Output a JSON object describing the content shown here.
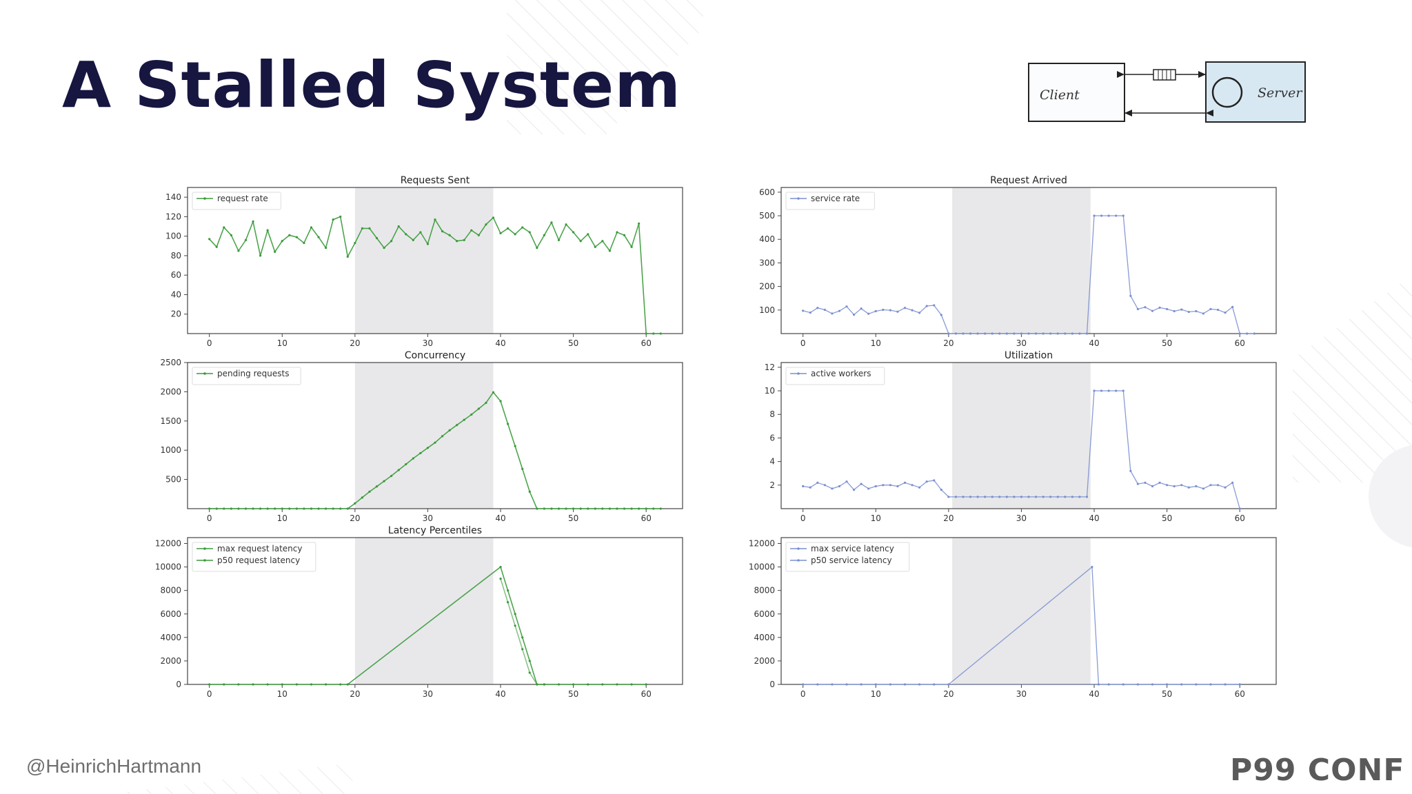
{
  "slide": {
    "title": "A Stalled System",
    "handle": "@HeinrichHartmann",
    "brand": "P99 CONF"
  },
  "diagram": {
    "client_label": "Client",
    "server_label": "Server"
  },
  "colors": {
    "green": "#3a9a3a",
    "blue": "#7b8fd0",
    "shade": "#e8e8ea",
    "title": "#161640"
  },
  "chart_data": [
    {
      "id": "requests-sent",
      "type": "line",
      "title": "Requests Sent",
      "xlim": [
        -3,
        65
      ],
      "ylim": [
        0,
        150
      ],
      "yticks": [
        20,
        40,
        60,
        80,
        100,
        120,
        140
      ],
      "xticks": [
        0,
        10,
        20,
        30,
        40,
        50,
        60
      ],
      "shade": [
        20,
        39
      ],
      "legend_position": "top-left",
      "series": [
        {
          "name": "request rate",
          "color": "green",
          "x": [
            0,
            1,
            2,
            3,
            4,
            5,
            6,
            7,
            8,
            9,
            10,
            11,
            12,
            13,
            14,
            15,
            16,
            17,
            18,
            19,
            20,
            21,
            22,
            23,
            24,
            25,
            26,
            27,
            28,
            29,
            30,
            31,
            32,
            33,
            34,
            35,
            36,
            37,
            38,
            39,
            40,
            41,
            42,
            43,
            44,
            45,
            46,
            47,
            48,
            49,
            50,
            51,
            52,
            53,
            54,
            55,
            56,
            57,
            58,
            59,
            60,
            61,
            62
          ],
          "y": [
            97,
            89,
            109,
            101,
            85,
            96,
            115,
            80,
            106,
            84,
            95,
            101,
            99,
            93,
            109,
            99,
            88,
            117,
            120,
            79,
            93,
            108,
            108,
            98,
            88,
            95,
            110,
            102,
            96,
            104,
            92,
            117,
            105,
            101,
            95,
            96,
            106,
            101,
            112,
            119,
            103,
            108,
            102,
            109,
            104,
            88,
            101,
            114,
            96,
            112,
            104,
            95,
            102,
            89,
            95,
            85,
            104,
            101,
            89,
            113,
            0,
            0,
            0
          ]
        }
      ]
    },
    {
      "id": "request-arrived",
      "type": "line",
      "title": "Request Arrived",
      "xlim": [
        -3,
        65
      ],
      "ylim": [
        0,
        620
      ],
      "yticks": [
        100,
        200,
        300,
        400,
        500,
        600
      ],
      "xticks": [
        0,
        10,
        20,
        30,
        40,
        50,
        60
      ],
      "shade": [
        20.5,
        39.5
      ],
      "legend_position": "top-left",
      "series": [
        {
          "name": "service rate",
          "color": "blue",
          "x": [
            0,
            1,
            2,
            3,
            4,
            5,
            6,
            7,
            8,
            9,
            10,
            11,
            12,
            13,
            14,
            15,
            16,
            17,
            18,
            19,
            20,
            21,
            22,
            23,
            24,
            25,
            26,
            27,
            28,
            29,
            30,
            31,
            32,
            33,
            34,
            35,
            36,
            37,
            38,
            39,
            40,
            41,
            42,
            43,
            44,
            45,
            46,
            47,
            48,
            49,
            50,
            51,
            52,
            53,
            54,
            55,
            56,
            57,
            58,
            59,
            60,
            61,
            62
          ],
          "y": [
            97,
            89,
            109,
            101,
            85,
            96,
            115,
            80,
            106,
            84,
            95,
            101,
            99,
            93,
            109,
            99,
            88,
            117,
            120,
            79,
            0,
            0,
            0,
            0,
            0,
            0,
            0,
            0,
            0,
            0,
            0,
            0,
            0,
            0,
            0,
            0,
            0,
            0,
            0,
            0,
            500,
            500,
            500,
            500,
            500,
            160,
            104,
            112,
            96,
            110,
            104,
            95,
            102,
            92,
            95,
            85,
            104,
            101,
            89,
            113,
            0,
            0,
            0
          ]
        }
      ]
    },
    {
      "id": "concurrency",
      "type": "line",
      "title": "Concurrency",
      "xlim": [
        -3,
        65
      ],
      "ylim": [
        0,
        2500
      ],
      "yticks": [
        500,
        1000,
        1500,
        2000,
        2500
      ],
      "xticks": [
        0,
        10,
        20,
        30,
        40,
        50,
        60
      ],
      "shade": [
        20,
        39
      ],
      "legend_position": "top-left",
      "series": [
        {
          "name": "pending requests",
          "color": "green",
          "x": [
            0,
            1,
            2,
            3,
            4,
            5,
            6,
            7,
            8,
            9,
            10,
            11,
            12,
            13,
            14,
            15,
            16,
            17,
            18,
            19,
            20,
            21,
            22,
            23,
            24,
            25,
            26,
            27,
            28,
            29,
            30,
            31,
            32,
            33,
            34,
            35,
            36,
            37,
            38,
            39,
            40,
            41,
            42,
            43,
            44,
            45,
            46,
            47,
            48,
            49,
            50,
            51,
            52,
            53,
            54,
            55,
            56,
            57,
            58,
            59,
            60,
            61,
            62
          ],
          "y": [
            0,
            0,
            0,
            0,
            0,
            0,
            0,
            0,
            0,
            0,
            0,
            0,
            0,
            0,
            0,
            0,
            0,
            0,
            0,
            0,
            90,
            190,
            290,
            380,
            470,
            560,
            660,
            760,
            860,
            950,
            1040,
            1130,
            1240,
            1340,
            1430,
            1520,
            1610,
            1710,
            1810,
            1990,
            1840,
            1450,
            1070,
            680,
            290,
            0,
            0,
            0,
            0,
            0,
            0,
            0,
            0,
            0,
            0,
            0,
            0,
            0,
            0,
            0,
            0,
            0,
            0
          ]
        }
      ]
    },
    {
      "id": "utilization",
      "type": "line",
      "title": "Utilization",
      "xlim": [
        -3,
        65
      ],
      "ylim": [
        0,
        12.4
      ],
      "yticks": [
        2,
        4,
        6,
        8,
        10,
        12
      ],
      "xticks": [
        0,
        10,
        20,
        30,
        40,
        50,
        60
      ],
      "shade": [
        20.5,
        39.5
      ],
      "legend_position": "top-left",
      "series": [
        {
          "name": "active workers",
          "color": "blue",
          "x": [
            0,
            1,
            2,
            3,
            4,
            5,
            6,
            7,
            8,
            9,
            10,
            11,
            12,
            13,
            14,
            15,
            16,
            17,
            18,
            19,
            20,
            21,
            22,
            23,
            24,
            25,
            26,
            27,
            28,
            29,
            30,
            31,
            32,
            33,
            34,
            35,
            36,
            37,
            38,
            39,
            40,
            41,
            42,
            43,
            44,
            45,
            46,
            47,
            48,
            49,
            50,
            51,
            52,
            53,
            54,
            55,
            56,
            57,
            58,
            59,
            60
          ],
          "y": [
            1.9,
            1.8,
            2.2,
            2.0,
            1.7,
            1.9,
            2.3,
            1.6,
            2.1,
            1.7,
            1.9,
            2.0,
            2.0,
            1.9,
            2.2,
            2.0,
            1.8,
            2.3,
            2.4,
            1.6,
            1,
            1,
            1,
            1,
            1,
            1,
            1,
            1,
            1,
            1,
            1,
            1,
            1,
            1,
            1,
            1,
            1,
            1,
            1,
            1,
            10,
            10,
            10,
            10,
            10,
            3.2,
            2.1,
            2.2,
            1.9,
            2.2,
            2.0,
            1.9,
            2.0,
            1.8,
            1.9,
            1.7,
            2.0,
            2.0,
            1.8,
            2.2,
            0
          ]
        }
      ]
    },
    {
      "id": "latency-percentiles",
      "type": "line",
      "title": "Latency Percentiles",
      "xlim": [
        -3,
        65
      ],
      "ylim": [
        0,
        12500
      ],
      "yticks": [
        0,
        2000,
        4000,
        6000,
        8000,
        10000,
        12000
      ],
      "xticks": [
        0,
        10,
        20,
        30,
        40,
        50,
        60
      ],
      "shade": [
        20,
        39
      ],
      "legend_position": "top-left",
      "series": [
        {
          "name": "max request latency",
          "color": "green",
          "x": [
            0,
            2,
            4,
            6,
            8,
            10,
            12,
            14,
            16,
            18,
            19,
            40,
            41,
            42,
            43,
            44,
            45,
            46,
            48,
            50,
            52,
            54,
            56,
            58,
            60
          ],
          "y": [
            0,
            0,
            0,
            0,
            0,
            0,
            0,
            0,
            0,
            0,
            0,
            10000,
            8000,
            6000,
            4000,
            2000,
            0,
            0,
            0,
            0,
            0,
            0,
            0,
            0,
            0
          ]
        },
        {
          "name": "p50 request latency",
          "color": "green",
          "x": [
            40,
            41,
            42,
            43,
            44,
            45,
            46
          ],
          "y": [
            9000,
            7000,
            5000,
            3000,
            1000,
            0,
            0
          ]
        }
      ]
    },
    {
      "id": "service-latency",
      "type": "line",
      "title": "",
      "xlim": [
        -3,
        65
      ],
      "ylim": [
        0,
        12500
      ],
      "yticks": [
        0,
        2000,
        4000,
        6000,
        8000,
        10000,
        12000
      ],
      "xticks": [
        0,
        10,
        20,
        30,
        40,
        50,
        60
      ],
      "shade": [
        20.5,
        39.5
      ],
      "legend_position": "top-left",
      "series": [
        {
          "name": "max service latency",
          "color": "blue",
          "x": [
            0,
            2,
            4,
            6,
            8,
            10,
            12,
            14,
            16,
            18,
            20,
            39.7,
            40.6,
            42,
            44,
            46,
            48,
            50,
            52,
            54,
            56,
            58,
            60
          ],
          "y": [
            0,
            0,
            0,
            0,
            0,
            0,
            0,
            0,
            0,
            0,
            0,
            10000,
            0,
            0,
            0,
            0,
            0,
            0,
            0,
            0,
            0,
            0,
            0
          ]
        },
        {
          "name": "p50 service latency",
          "color": "blue",
          "x": [
            0,
            60
          ],
          "y": [
            0,
            0
          ]
        }
      ]
    }
  ]
}
